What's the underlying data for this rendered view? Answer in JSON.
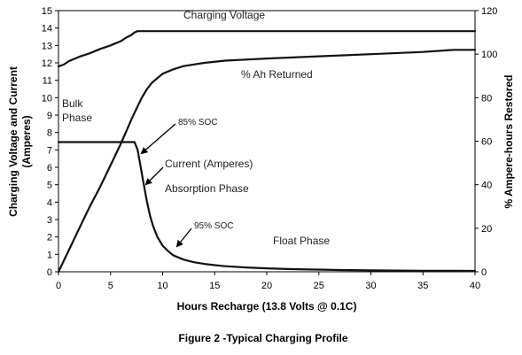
{
  "chart_data": {
    "type": "line",
    "caption": "Figure 2 -Typical Charging Profile",
    "xlabel": "Hours Recharge (13.8 Volts @ 0.1C)",
    "ylabel_left": [
      "Charging Voltage and Current",
      "(Amperes)"
    ],
    "ylabel_right": "% Ampere-hours Restored",
    "xlim": [
      0,
      40
    ],
    "ylim_left": [
      0,
      15
    ],
    "ylim_right": [
      0,
      120
    ],
    "xticks": [
      "0",
      "5",
      "10",
      "15",
      "20",
      "25",
      "30",
      "35",
      "40"
    ],
    "yticks_left": [
      "0",
      "1",
      "2",
      "3",
      "4",
      "5",
      "6",
      "7",
      "8",
      "9",
      "10",
      "11",
      "12",
      "13",
      "14",
      "15"
    ],
    "yticks_right": [
      "0",
      "20",
      "40",
      "60",
      "80",
      "100",
      "120"
    ],
    "grid": false,
    "series": [
      {
        "name": "Charging Voltage",
        "axis": "left",
        "x": [
          0,
          0.5,
          1,
          2,
          3,
          4,
          5,
          6,
          6.5,
          7,
          7.3,
          7.6,
          8,
          10,
          20,
          30,
          40
        ],
        "y": [
          11.8,
          11.9,
          12.1,
          12.35,
          12.55,
          12.8,
          13.0,
          13.25,
          13.45,
          13.6,
          13.75,
          13.82,
          13.82,
          13.82,
          13.82,
          13.82,
          13.82
        ]
      },
      {
        "name": "% Ah Returned",
        "axis": "right",
        "x": [
          0,
          1,
          2,
          3,
          4,
          5,
          6,
          7,
          7.5,
          8,
          8.5,
          9,
          10,
          11,
          12,
          14,
          16,
          18,
          20,
          25,
          30,
          35,
          38,
          40
        ],
        "y": [
          0,
          10,
          20,
          30,
          39,
          49,
          59,
          70,
          75,
          80,
          84,
          87,
          91,
          93,
          94.5,
          96,
          97,
          97.5,
          98,
          99,
          100,
          101,
          102,
          102
        ]
      },
      {
        "name": "Current (Amperes)",
        "axis": "left",
        "x": [
          0,
          2,
          4,
          6,
          7,
          7.3,
          7.6,
          7.9,
          8.2,
          8.5,
          8.8,
          9.1,
          9.5,
          10,
          10.5,
          11,
          12,
          13,
          14,
          15,
          16,
          18,
          20,
          22,
          24,
          25.5,
          27,
          30,
          35,
          40
        ],
        "y": [
          7.45,
          7.45,
          7.45,
          7.45,
          7.45,
          7.45,
          7.0,
          6.0,
          5.0,
          4.0,
          3.2,
          2.6,
          2.0,
          1.5,
          1.2,
          0.95,
          0.7,
          0.55,
          0.45,
          0.38,
          0.32,
          0.25,
          0.2,
          0.16,
          0.13,
          0.12,
          0.1,
          0.08,
          0.06,
          0.05
        ]
      }
    ],
    "annotations": {
      "charging_voltage": "Charging Voltage",
      "ah_returned": "% Ah Returned",
      "bulk": "Bulk",
      "phase": "Phase",
      "soc85": "85% SOC",
      "current": "Current (Amperes)",
      "absorption": "Absorption Phase",
      "soc95": "95% SOC",
      "float": "Float Phase"
    }
  }
}
